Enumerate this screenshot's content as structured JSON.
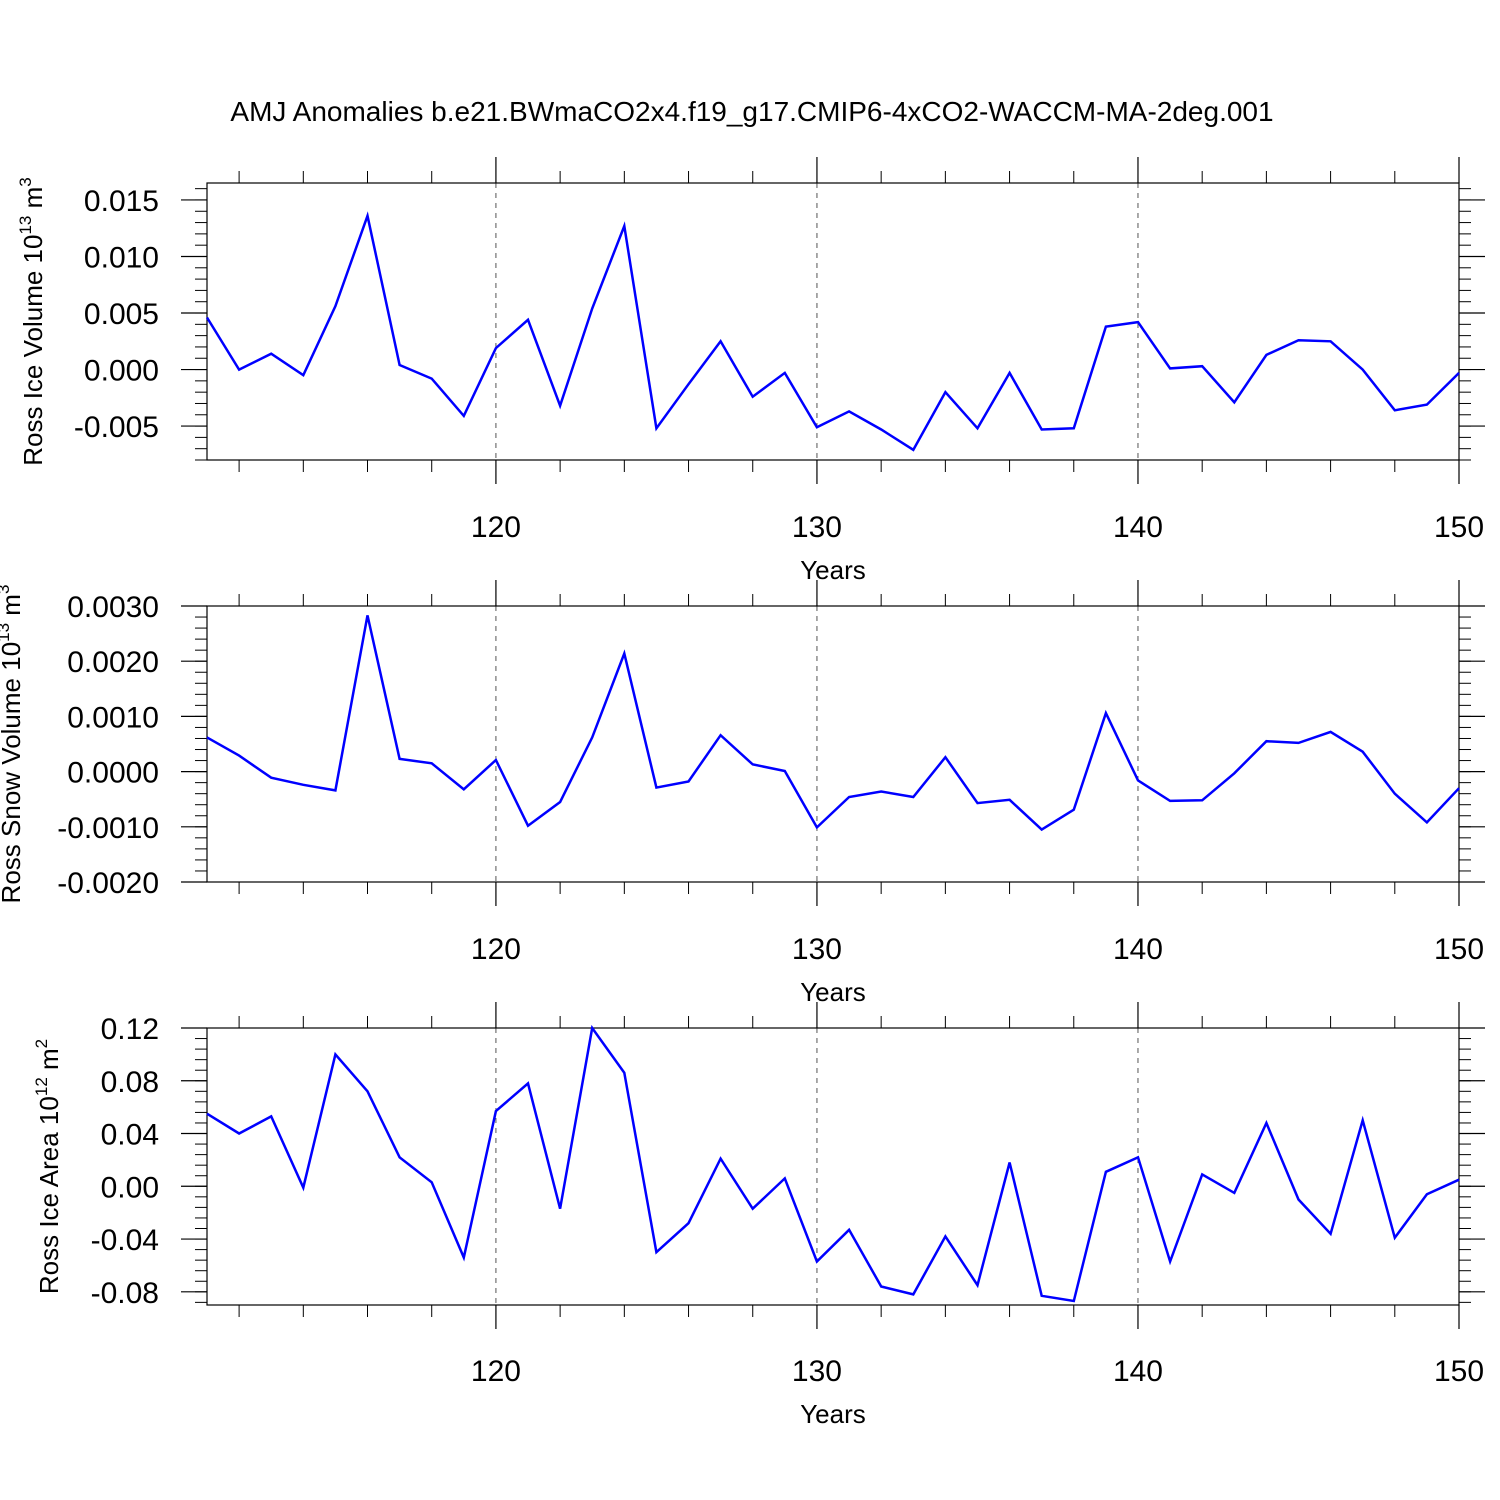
{
  "title": "AMJ Anomalies b.e21.BWmaCO2x4.f19_g17.CMIP6-4xCO2-WACCM-MA-2deg.001",
  "colors": {
    "line": "#0000ff",
    "axis": "#000000",
    "grid": "#555555"
  },
  "chart_data": [
    {
      "type": "line",
      "ylabel_base": "Ross Ice Volume 10",
      "ylabel_exp": "13",
      "ylabel_unit": " m",
      "ylabel_unit_exp": "3",
      "xlabel": "Years",
      "xlim": [
        111,
        150
      ],
      "ylim": [
        -0.008,
        0.0165
      ],
      "xticks": [
        "120",
        "130",
        "140",
        "150"
      ],
      "yticks": [
        "0.015",
        "0.010",
        "0.005",
        "0.000",
        "-0.005"
      ],
      "grid": "dashed vertical lines at x = 120, 130, 140",
      "x": [
        111,
        112,
        113,
        114,
        115,
        116,
        117,
        118,
        119,
        120,
        121,
        122,
        123,
        124,
        125,
        126,
        127,
        128,
        129,
        130,
        131,
        132,
        133,
        134,
        135,
        136,
        137,
        138,
        139,
        140,
        141,
        142,
        143,
        144,
        145,
        146,
        147,
        148,
        149,
        150
      ],
      "series": [
        {
          "values": [
            0.0046,
            0.0,
            0.0014,
            -0.0005,
            0.0056,
            0.0136,
            0.0004,
            -0.0008,
            -0.0041,
            0.0019,
            0.0044,
            -0.0032,
            0.0054,
            0.0127,
            -0.0052,
            -0.0013,
            0.0025,
            -0.0024,
            -0.0003,
            -0.0051,
            -0.0037,
            -0.0053,
            -0.0071,
            -0.002,
            -0.0052,
            -0.0003,
            -0.0053,
            -0.0052,
            0.0038,
            0.0042,
            0.0001,
            0.0003,
            -0.0029,
            0.0013,
            0.0026,
            0.0025,
            0.0,
            -0.0036,
            -0.0031,
            -0.0003
          ]
        }
      ]
    },
    {
      "type": "line",
      "ylabel_base": "Ross Snow Volume 10",
      "ylabel_exp": "13",
      "ylabel_unit": " m",
      "ylabel_unit_exp": "3",
      "xlabel": "Years",
      "xlim": [
        111,
        150
      ],
      "ylim": [
        -0.002,
        0.003
      ],
      "xticks": [
        "120",
        "130",
        "140",
        "150"
      ],
      "yticks": [
        "0.0030",
        "0.0020",
        "0.0010",
        "0.0000",
        "-0.0010",
        "-0.0020"
      ],
      "grid": "dashed vertical lines at x = 120, 130, 140",
      "x": [
        111,
        112,
        113,
        114,
        115,
        116,
        117,
        118,
        119,
        120,
        121,
        122,
        123,
        124,
        125,
        126,
        127,
        128,
        129,
        130,
        131,
        132,
        133,
        134,
        135,
        136,
        137,
        138,
        139,
        140,
        141,
        142,
        143,
        144,
        145,
        146,
        147,
        148,
        149,
        150
      ],
      "series": [
        {
          "values": [
            0.00062,
            0.00029,
            -0.00011,
            -0.00024,
            -0.00034,
            0.00283,
            0.00023,
            0.00015,
            -0.00032,
            0.00021,
            -0.00098,
            -0.00055,
            0.00062,
            0.00214,
            -0.00029,
            -0.00018,
            0.00066,
            0.00013,
            1e-05,
            -0.00101,
            -0.00046,
            -0.00036,
            -0.00046,
            0.00026,
            -0.00057,
            -0.00051,
            -0.00105,
            -0.00069,
            0.00106,
            -0.00016,
            -0.00053,
            -0.00052,
            -3e-05,
            0.00055,
            0.00052,
            0.00072,
            0.00036,
            -0.0004,
            -0.00092,
            -0.0003
          ]
        }
      ]
    },
    {
      "type": "line",
      "ylabel_base": "Ross Ice Area 10",
      "ylabel_exp": "12",
      "ylabel_unit": " m",
      "ylabel_unit_exp": "2",
      "xlabel": "Years",
      "xlim": [
        111,
        150
      ],
      "ylim": [
        -0.09,
        0.12
      ],
      "xticks": [
        "120",
        "130",
        "140",
        "150"
      ],
      "yticks": [
        "0.12",
        "0.08",
        "0.04",
        "0.00",
        "-0.04",
        "-0.08"
      ],
      "grid": "dashed vertical lines at x = 120, 130, 140",
      "x": [
        111,
        112,
        113,
        114,
        115,
        116,
        117,
        118,
        119,
        120,
        121,
        122,
        123,
        124,
        125,
        126,
        127,
        128,
        129,
        130,
        131,
        132,
        133,
        134,
        135,
        136,
        137,
        138,
        139,
        140,
        141,
        142,
        143,
        144,
        145,
        146,
        147,
        148,
        149,
        150
      ],
      "series": [
        {
          "values": [
            0.055,
            0.04,
            0.053,
            -0.001,
            0.1,
            0.072,
            0.022,
            0.003,
            -0.054,
            0.057,
            0.078,
            -0.017,
            0.12,
            0.086,
            -0.05,
            -0.028,
            0.021,
            -0.017,
            0.006,
            -0.057,
            -0.033,
            -0.076,
            -0.082,
            -0.038,
            -0.075,
            0.018,
            -0.083,
            -0.087,
            0.011,
            0.022,
            -0.057,
            0.009,
            -0.005,
            0.048,
            -0.01,
            -0.036,
            0.05,
            -0.039,
            -0.006,
            0.005
          ]
        }
      ]
    }
  ]
}
